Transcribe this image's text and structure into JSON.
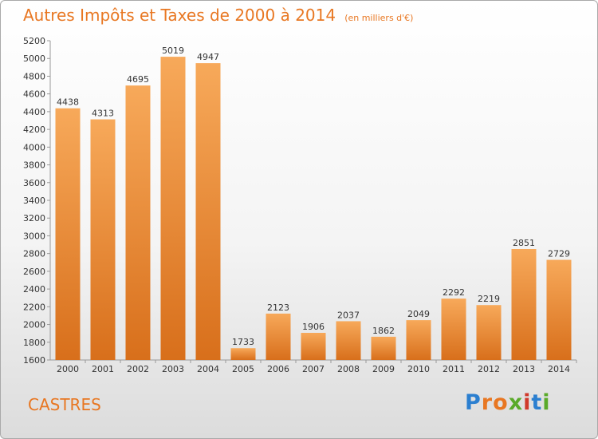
{
  "title": "Autres Impôts et Taxes de 2000 à 2014",
  "subtitle": "(en milliers d'€)",
  "city": "CASTRES",
  "logo": {
    "letters": [
      "P",
      "r",
      "o",
      "x",
      "i",
      "t",
      "i"
    ],
    "colors": [
      "#2b7fd0",
      "#e87722",
      "#e87722",
      "#5aaa2a",
      "#d0392b",
      "#2b7fd0",
      "#5aaa2a"
    ]
  },
  "colors": {
    "accent": "#e87722",
    "bar_top": "#f7a95a",
    "bar_bottom": "#d86f1b"
  },
  "chart_data": {
    "type": "bar",
    "title": "Autres Impôts et Taxes de 2000 à 2014",
    "subtitle": "(en milliers d'€)",
    "categories": [
      "2000",
      "2001",
      "2002",
      "2003",
      "2004",
      "2005",
      "2006",
      "2007",
      "2008",
      "2009",
      "2010",
      "2011",
      "2012",
      "2013",
      "2014"
    ],
    "values": [
      4438,
      4313,
      4695,
      5019,
      4947,
      1733,
      2123,
      1906,
      2037,
      1862,
      2049,
      2292,
      2219,
      2851,
      2729
    ],
    "ylim": [
      1600,
      5200
    ],
    "yticks": [
      1600,
      1800,
      2000,
      2200,
      2400,
      2600,
      2800,
      3000,
      3200,
      3400,
      3600,
      3800,
      4000,
      4200,
      4400,
      4600,
      4800,
      5000,
      5200
    ],
    "grid": false
  }
}
